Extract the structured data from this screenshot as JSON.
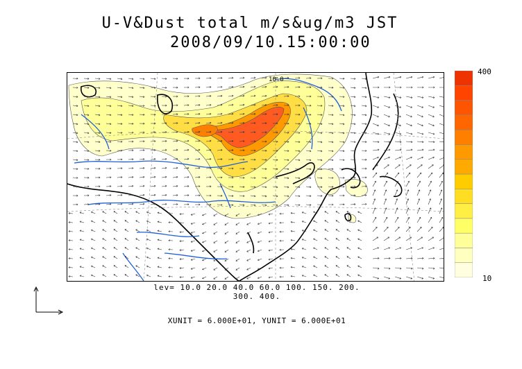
{
  "title": {
    "line1": "U-V&Dust total m/s&ug/m3 JST",
    "line2": "2008/09/10.15:00:00"
  },
  "colorbar": {
    "top_label": "400",
    "bottom_label": "10",
    "colors": [
      "#ffffe0",
      "#ffffc0",
      "#ffff99",
      "#ffff66",
      "#ffee44",
      "#ffdd22",
      "#ffcc00",
      "#ffaa00",
      "#ff9900",
      "#ff7f00",
      "#ff6600",
      "#ff5500",
      "#ff4400",
      "#ee3300"
    ]
  },
  "map": {
    "contour_label": "10.0",
    "colors": {
      "coast": "#000000",
      "river": "#1e5fd8",
      "border": "#000000",
      "grid": "#888888",
      "vector": "#333333"
    }
  },
  "levels_line1": "lev= 10.0 20.0 40.0 60.0 100. 150. 200.",
  "levels_line2": "300. 400.",
  "units_text": "XUNIT = 6.000E+01, YUNIT = 6.000E+01"
}
